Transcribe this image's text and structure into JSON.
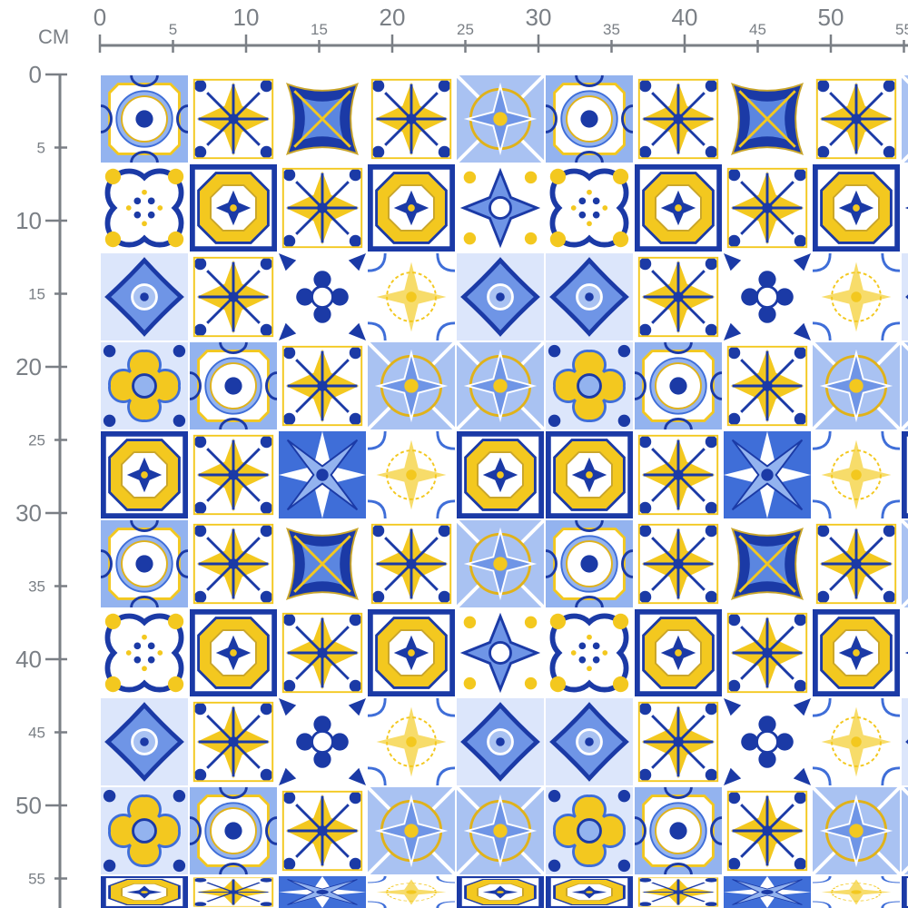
{
  "ruler": {
    "unit_label": "CM",
    "horizontal_major": [
      "0",
      "10",
      "20",
      "30",
      "40",
      "50"
    ],
    "horizontal_minor": [
      "5",
      "15",
      "25",
      "35",
      "45",
      "55"
    ],
    "vertical_major": [
      "0",
      "10",
      "20",
      "30",
      "40",
      "50"
    ],
    "vertical_minor": [
      "5",
      "15",
      "25",
      "35",
      "45",
      "55"
    ],
    "color": "#7a7f85"
  },
  "colors": {
    "dark_blue": "#1b3aa6",
    "mid_blue": "#3f6ed8",
    "light_blue": "#93b3ef",
    "yellow": "#f3c81f",
    "white": "#ffffff"
  },
  "fabric": {
    "pattern": "azulejo tiles",
    "tile_rows": [
      [
        "medallion",
        "yellow-cross",
        "blue-square",
        "yellow-cross",
        "light-ornate",
        "medallion",
        "yellow-cross",
        "blue-square",
        "yellow-cross",
        "light-ornate"
      ],
      [
        "quatrefoil",
        "yellow-octagon",
        "yellow-cross",
        "yellow-octagon",
        "blue-lace",
        "quatrefoil",
        "yellow-octagon",
        "yellow-cross",
        "yellow-octagon",
        "blue-lace"
      ],
      [
        "blue-diamond",
        "yellow-cross",
        "blue-flower",
        "pale-lace",
        "blue-diamond",
        "blue-diamond",
        "yellow-cross",
        "blue-flower",
        "pale-lace",
        "blue-diamond"
      ],
      [
        "yellow-quatre",
        "medallion",
        "yellow-cross",
        "light-ornate",
        "light-ornate",
        "yellow-quatre",
        "medallion",
        "yellow-cross",
        "light-ornate",
        "light-ornate"
      ],
      [
        "yellow-octagon",
        "yellow-cross",
        "blue-star",
        "pale-lace",
        "yellow-octagon",
        "yellow-octagon",
        "yellow-cross",
        "blue-star",
        "pale-lace",
        "yellow-octagon"
      ],
      [
        "medallion",
        "yellow-cross",
        "blue-square",
        "yellow-cross",
        "light-ornate",
        "medallion",
        "yellow-cross",
        "blue-square",
        "yellow-cross",
        "light-ornate"
      ],
      [
        "quatrefoil",
        "yellow-octagon",
        "yellow-cross",
        "yellow-octagon",
        "blue-lace",
        "quatrefoil",
        "yellow-octagon",
        "yellow-cross",
        "yellow-octagon",
        "blue-lace"
      ],
      [
        "blue-diamond",
        "yellow-cross",
        "blue-flower",
        "pale-lace",
        "blue-diamond",
        "blue-diamond",
        "yellow-cross",
        "blue-flower",
        "pale-lace",
        "blue-diamond"
      ],
      [
        "yellow-quatre",
        "medallion",
        "yellow-cross",
        "light-ornate",
        "light-ornate",
        "yellow-quatre",
        "medallion",
        "yellow-cross",
        "light-ornate",
        "light-ornate"
      ],
      [
        "yellow-octagon",
        "yellow-cross",
        "blue-star",
        "pale-lace",
        "yellow-octagon",
        "yellow-octagon",
        "yellow-cross",
        "blue-star",
        "pale-lace",
        "yellow-octagon"
      ]
    ]
  }
}
